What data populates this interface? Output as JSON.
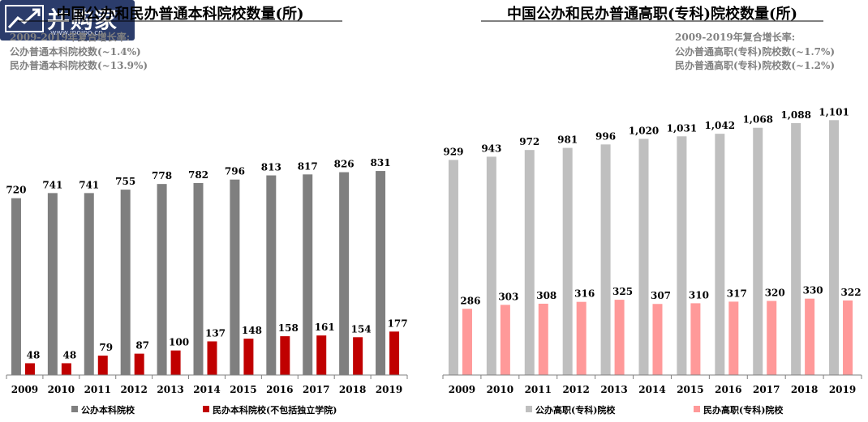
{
  "logo": {
    "text": "并购家",
    "url": "www.ipoipo.cn",
    "icon": "chart-logo-icon"
  },
  "chart_data": [
    {
      "type": "bar",
      "title": "中国公办和民办普通本科院校数量(所)",
      "subtitle": "2009-2019年复合增长率:",
      "notes": [
        "公办普通本科院校数(~1.4%)",
        "民办普通本科院校数(~13.9%)"
      ],
      "categories": [
        "2009",
        "2010",
        "2011",
        "2012",
        "2013",
        "2014",
        "2015",
        "2016",
        "2017",
        "2018",
        "2019"
      ],
      "series": [
        {
          "name": "公办本科院校",
          "color": "#7f7f7f",
          "values": [
            720,
            741,
            741,
            755,
            778,
            782,
            796,
            813,
            817,
            826,
            831
          ]
        },
        {
          "name": "民办本科院校(不包括独立学院)",
          "color": "#c00000",
          "values": [
            48,
            48,
            79,
            87,
            100,
            137,
            148,
            158,
            161,
            154,
            177
          ]
        }
      ],
      "labels": [
        [
          "720",
          "741",
          "741",
          "755",
          "778",
          "782",
          "796",
          "813",
          "817",
          "826",
          "831"
        ],
        [
          "48",
          "48",
          "79",
          "87",
          "100",
          "137",
          "148",
          "158",
          "161",
          "154",
          "177"
        ]
      ],
      "ylim": [
        0,
        950
      ],
      "legend": "bottom",
      "grid": false
    },
    {
      "type": "bar",
      "title": "中国公办和民办普通高职(专科)院校数量(所)",
      "subtitle": "2009-2019年复合增长率:",
      "notes": [
        "公办普通高职(专科)院校数(~1.7%)",
        "民办普通高职(专科)院校数(~1.2%)"
      ],
      "categories": [
        "2009",
        "2010",
        "2011",
        "2012",
        "2013",
        "2014",
        "2015",
        "2016",
        "2017",
        "2018",
        "2019"
      ],
      "series": [
        {
          "name": "公办高职(专科)院校",
          "color": "#bfbfbf",
          "values": [
            929,
            943,
            972,
            981,
            996,
            1020,
            1031,
            1042,
            1068,
            1088,
            1101
          ]
        },
        {
          "name": "民办高职(专科)院校",
          "color": "#ff9999",
          "values": [
            286,
            303,
            308,
            316,
            325,
            307,
            310,
            317,
            320,
            330,
            322
          ]
        }
      ],
      "labels": [
        [
          "929",
          "943",
          "972",
          "981",
          "996",
          "1,020",
          "1,031",
          "1,042",
          "1,068",
          "1,088",
          "1,101"
        ],
        [
          "286",
          "303",
          "308",
          "316",
          "325",
          "307",
          "310",
          "317",
          "320",
          "330",
          "322"
        ]
      ],
      "ylim": [
        0,
        1200
      ],
      "legend": "bottom",
      "grid": false
    }
  ]
}
